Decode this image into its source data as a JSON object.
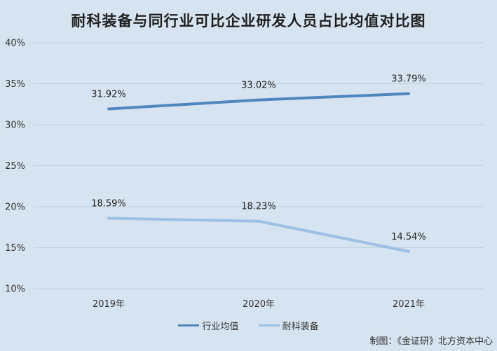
{
  "chart_data": {
    "type": "line",
    "title": "耐科装备与同行业可比企业研发人员占比均值对比图",
    "categories": [
      "2019年",
      "2020年",
      "2021年"
    ],
    "series": [
      {
        "name": "行业均值",
        "values": [
          31.92,
          33.02,
          33.79
        ],
        "labels": [
          "31.92%",
          "33.02%",
          "33.79%"
        ],
        "color": "#4f86bd"
      },
      {
        "name": "耐科装备",
        "values": [
          18.59,
          18.23,
          14.54
        ],
        "labels": [
          "18.59%",
          "18.23%",
          "14.54%"
        ],
        "color": "#9dc0e4"
      }
    ],
    "yticks": [
      "10%",
      "15%",
      "20%",
      "25%",
      "30%",
      "35%",
      "40%"
    ],
    "ylim": [
      10,
      40
    ],
    "grid": true,
    "legend_position": "bottom"
  },
  "footer": "制图：《金证研》北方资本中心"
}
